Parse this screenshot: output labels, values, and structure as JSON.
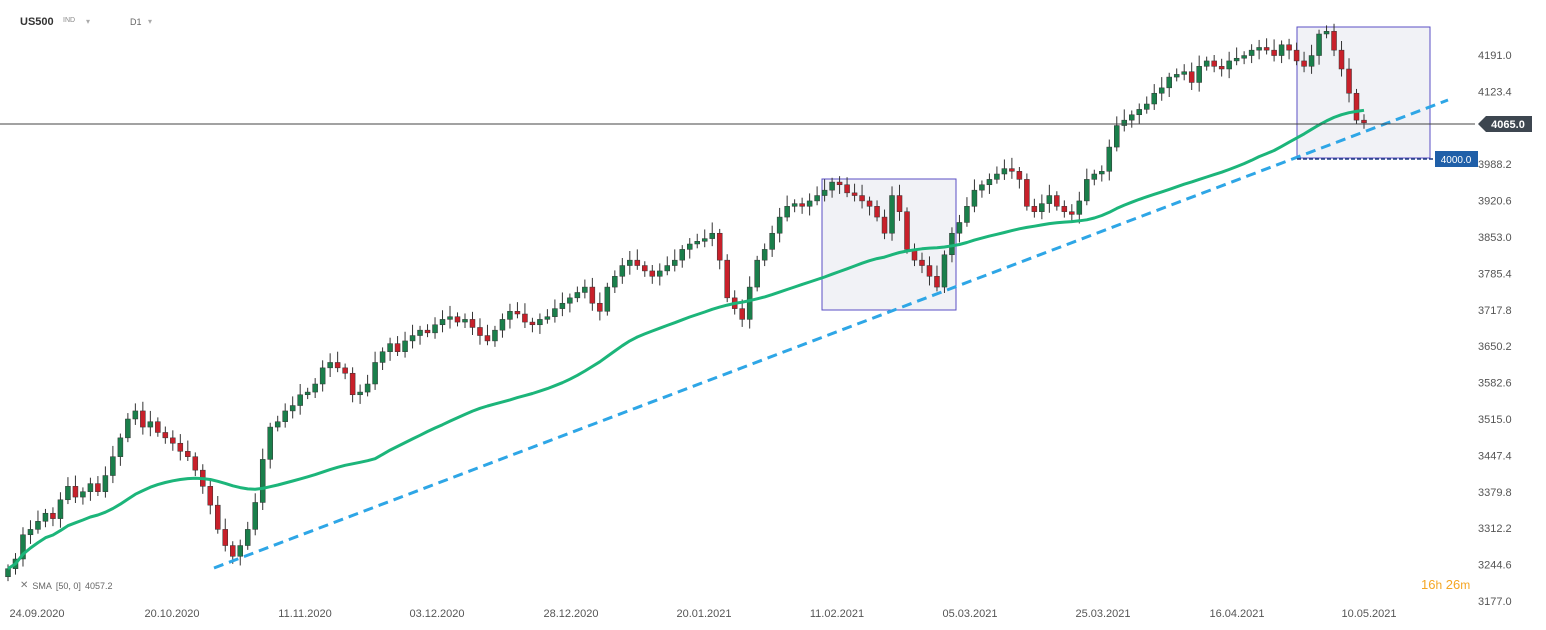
{
  "header": {
    "symbol": "US500",
    "instrument_type": "IND",
    "timeframe": "D1"
  },
  "indicator_legend": {
    "close": "✕",
    "name": "SMA",
    "params": "[50, 0]",
    "value": "4057.2"
  },
  "timer": {
    "hours": "16",
    "h": "h",
    "minutes": "26",
    "m": "m"
  },
  "colors": {
    "up_candle": "#1a7f4b",
    "down_candle": "#c8202a",
    "sma": "#1cb57a",
    "trendline": "#2ea6e6",
    "price_tag": "#3d4650",
    "level_tag": "#1f5fa8",
    "box_border": "#5a4fc4"
  },
  "chart_data": {
    "type": "candlestick",
    "y_axis": {
      "ticks": [
        "4191.0",
        "4123.4",
        "3988.2",
        "3920.6",
        "3853.0",
        "3785.4",
        "3717.8",
        "3650.2",
        "3582.6",
        "3515.0",
        "3447.4",
        "3379.8",
        "3312.2",
        "3244.6",
        "3177.0"
      ],
      "range": [
        3177,
        4259
      ]
    },
    "x_axis": {
      "ticks": [
        "24.09.2020",
        "20.10.2020",
        "11.11.2020",
        "03.12.2020",
        "28.12.2020",
        "20.01.2021",
        "11.02.2021",
        "05.03.2021",
        "25.03.2021",
        "16.04.2021",
        "10.05.2021"
      ]
    },
    "current_price": "4065.0",
    "level_label": "4000.0",
    "series": [
      {
        "name": "US500",
        "closes": [
          3237,
          3255,
          3300,
          3310,
          3325,
          3340,
          3330,
          3365,
          3390,
          3370,
          3380,
          3395,
          3380,
          3410,
          3445,
          3480,
          3515,
          3530,
          3500,
          3510,
          3490,
          3480,
          3470,
          3455,
          3445,
          3420,
          3390,
          3355,
          3310,
          3280,
          3260,
          3280,
          3310,
          3360,
          3440,
          3500,
          3510,
          3530,
          3540,
          3560,
          3565,
          3580,
          3610,
          3620,
          3610,
          3600,
          3560,
          3565,
          3580,
          3620,
          3640,
          3655,
          3640,
          3660,
          3670,
          3680,
          3675,
          3690,
          3700,
          3705,
          3695,
          3700,
          3685,
          3670,
          3660,
          3680,
          3700,
          3715,
          3710,
          3695,
          3690,
          3700,
          3705,
          3720,
          3730,
          3740,
          3750,
          3760,
          3730,
          3715,
          3760,
          3780,
          3800,
          3810,
          3800,
          3790,
          3780,
          3790,
          3800,
          3810,
          3830,
          3840,
          3845,
          3850,
          3860,
          3810,
          3740,
          3720,
          3700,
          3760,
          3810,
          3830,
          3860,
          3890,
          3910,
          3915,
          3910,
          3920,
          3930,
          3940,
          3955,
          3950,
          3935,
          3930,
          3920,
          3910,
          3890,
          3860,
          3930,
          3900,
          3830,
          3810,
          3800,
          3780,
          3760,
          3820,
          3860,
          3880,
          3910,
          3940,
          3950,
          3960,
          3970,
          3980,
          3975,
          3960,
          3910,
          3900,
          3915,
          3930,
          3910,
          3900,
          3895,
          3920,
          3960,
          3970,
          3975,
          4020,
          4060,
          4070,
          4080,
          4090,
          4100,
          4120,
          4130,
          4150,
          4155,
          4160,
          4140,
          4170,
          4180,
          4170,
          4165,
          4180,
          4185,
          4190,
          4200,
          4205,
          4200,
          4190,
          4210,
          4200,
          4180,
          4170,
          4190,
          4230,
          4235,
          4200,
          4165,
          4120,
          4070,
          4065
        ]
      }
    ],
    "sma_period": 50
  }
}
